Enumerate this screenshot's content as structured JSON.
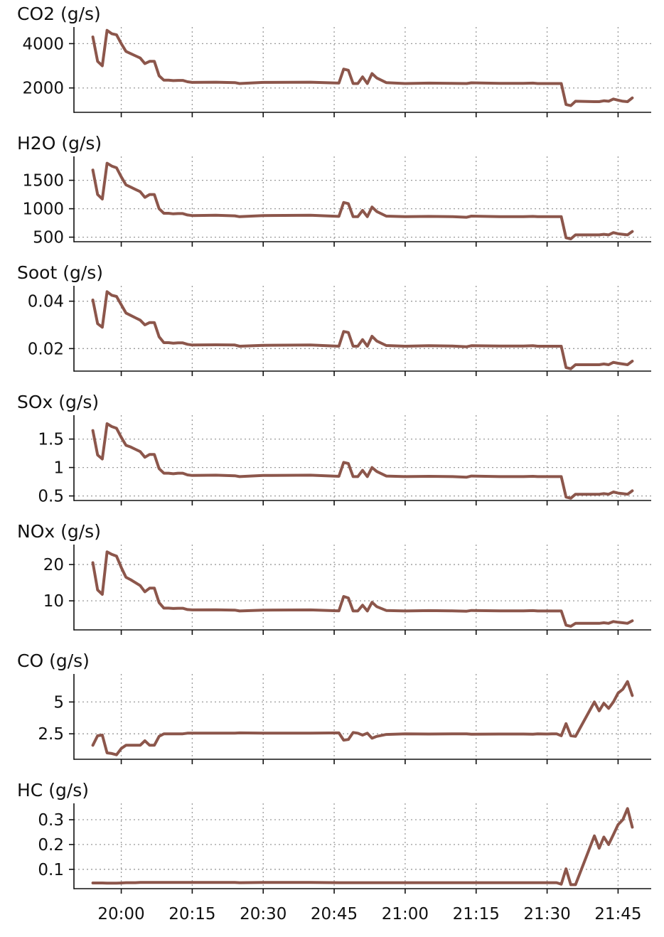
{
  "chart_data": {
    "type": "line",
    "line_color": "#8c564b",
    "grid": "dotted, on both axes",
    "x_ticks": [
      "20:00",
      "20:15",
      "20:30",
      "20:45",
      "21:00",
      "21:15",
      "21:30",
      "21:45"
    ],
    "x_range": [
      "19:50",
      "21:52"
    ],
    "x": [
      "19:54",
      "19:55",
      "19:56",
      "19:57",
      "19:58",
      "19:59",
      "20:00",
      "20:01",
      "20:02",
      "20:03",
      "20:04",
      "20:05",
      "20:06",
      "20:07",
      "20:08",
      "20:09",
      "20:10",
      "20:11",
      "20:12",
      "20:13",
      "20:14",
      "20:15",
      "20:20",
      "20:24",
      "20:25",
      "20:30",
      "20:40",
      "20:46",
      "20:47",
      "20:48",
      "20:49",
      "20:50",
      "20:51",
      "20:52",
      "20:53",
      "20:54",
      "20:56",
      "21:00",
      "21:05",
      "21:10",
      "21:13",
      "21:14",
      "21:20",
      "21:25",
      "21:27",
      "21:28",
      "21:30",
      "21:31",
      "21:32",
      "21:33",
      "21:34",
      "21:35",
      "21:36",
      "21:40",
      "21:41",
      "21:42",
      "21:43",
      "21:44",
      "21:45",
      "21:46",
      "21:47",
      "21:48"
    ],
    "panels": [
      {
        "ylabel": "CO2 (g/s)",
        "yticks": [
          2000,
          4000
        ],
        "ylim": [
          900,
          4750
        ],
        "values": [
          4300,
          3200,
          3000,
          4600,
          4450,
          4400,
          4000,
          3650,
          3550,
          3450,
          3350,
          3100,
          3200,
          3200,
          2550,
          2350,
          2350,
          2330,
          2340,
          2340,
          2280,
          2250,
          2260,
          2240,
          2200,
          2250,
          2260,
          2220,
          2850,
          2800,
          2200,
          2200,
          2500,
          2200,
          2650,
          2450,
          2240,
          2200,
          2220,
          2210,
          2200,
          2230,
          2210,
          2210,
          2220,
          2200,
          2200,
          2200,
          2200,
          2200,
          1250,
          1200,
          1400,
          1380,
          1380,
          1420,
          1400,
          1500,
          1450,
          1400,
          1380,
          1550
        ]
      },
      {
        "ylabel": "H2O (g/s)",
        "yticks": [
          500,
          1000,
          1500
        ],
        "ylim": [
          420,
          1920
        ],
        "values": [
          1680,
          1250,
          1170,
          1800,
          1750,
          1720,
          1560,
          1420,
          1380,
          1340,
          1300,
          1200,
          1250,
          1250,
          1000,
          920,
          920,
          910,
          915,
          915,
          890,
          880,
          885,
          875,
          860,
          880,
          885,
          865,
          1110,
          1090,
          860,
          860,
          970,
          860,
          1030,
          950,
          870,
          860,
          865,
          860,
          850,
          870,
          860,
          860,
          865,
          860,
          860,
          860,
          860,
          860,
          490,
          470,
          540,
          540,
          540,
          550,
          540,
          580,
          560,
          550,
          540,
          600
        ]
      },
      {
        "ylabel": "Soot (g/s)",
        "yticks": [
          0.02,
          0.04
        ],
        "ylim": [
          0.0105,
          0.0465
        ],
        "values": [
          0.0405,
          0.0305,
          0.029,
          0.044,
          0.0425,
          0.042,
          0.0385,
          0.035,
          0.034,
          0.033,
          0.032,
          0.03,
          0.031,
          0.031,
          0.025,
          0.0225,
          0.0225,
          0.0223,
          0.0224,
          0.0224,
          0.0218,
          0.0215,
          0.0216,
          0.0215,
          0.021,
          0.0214,
          0.0215,
          0.021,
          0.0272,
          0.0268,
          0.021,
          0.021,
          0.0238,
          0.021,
          0.0252,
          0.0232,
          0.0213,
          0.021,
          0.0212,
          0.0211,
          0.0208,
          0.0212,
          0.0211,
          0.0211,
          0.0212,
          0.021,
          0.021,
          0.021,
          0.021,
          0.021,
          0.012,
          0.0115,
          0.0132,
          0.0132,
          0.0132,
          0.0135,
          0.0132,
          0.0142,
          0.0138,
          0.0135,
          0.0132,
          0.0147
        ]
      },
      {
        "ylabel": "SOx (g/s)",
        "yticks": [
          0.5,
          1.0,
          1.5
        ],
        "ylim": [
          0.42,
          1.92
        ],
        "values": [
          1.65,
          1.22,
          1.15,
          1.77,
          1.72,
          1.69,
          1.53,
          1.39,
          1.36,
          1.32,
          1.28,
          1.18,
          1.23,
          1.23,
          0.98,
          0.9,
          0.9,
          0.89,
          0.9,
          0.9,
          0.87,
          0.86,
          0.865,
          0.855,
          0.84,
          0.86,
          0.865,
          0.845,
          1.09,
          1.07,
          0.84,
          0.84,
          0.95,
          0.84,
          1.0,
          0.93,
          0.85,
          0.84,
          0.845,
          0.84,
          0.83,
          0.85,
          0.84,
          0.84,
          0.845,
          0.84,
          0.84,
          0.84,
          0.84,
          0.84,
          0.48,
          0.46,
          0.53,
          0.53,
          0.53,
          0.54,
          0.53,
          0.57,
          0.55,
          0.54,
          0.53,
          0.59
        ]
      },
      {
        "ylabel": "NOx (g/s)",
        "yticks": [
          10,
          20
        ],
        "ylim": [
          2.0,
          25.5
        ],
        "values": [
          20.5,
          13.0,
          11.8,
          23.5,
          22.8,
          22.3,
          19.2,
          16.5,
          15.8,
          15.0,
          14.2,
          12.5,
          13.5,
          13.5,
          9.5,
          8.0,
          8.0,
          7.9,
          7.95,
          7.95,
          7.6,
          7.5,
          7.55,
          7.45,
          7.2,
          7.45,
          7.5,
          7.25,
          11.2,
          10.8,
          7.2,
          7.2,
          8.8,
          7.2,
          9.6,
          8.4,
          7.35,
          7.2,
          7.3,
          7.25,
          7.15,
          7.35,
          7.25,
          7.25,
          7.3,
          7.2,
          7.2,
          7.2,
          7.2,
          7.2,
          3.3,
          3.0,
          3.8,
          3.8,
          3.8,
          3.95,
          3.8,
          4.3,
          4.1,
          3.95,
          3.8,
          4.5
        ]
      },
      {
        "ylabel": "CO (g/s)",
        "yticks": [
          2.5,
          5.0
        ],
        "ylim": [
          0.5,
          7.2
        ],
        "values": [
          1.6,
          2.35,
          2.4,
          1.0,
          0.95,
          0.85,
          1.35,
          1.6,
          1.6,
          1.6,
          1.6,
          1.95,
          1.6,
          1.6,
          2.3,
          2.5,
          2.5,
          2.5,
          2.5,
          2.5,
          2.55,
          2.55,
          2.55,
          2.55,
          2.57,
          2.55,
          2.55,
          2.57,
          2.0,
          2.05,
          2.6,
          2.55,
          2.4,
          2.55,
          2.15,
          2.3,
          2.45,
          2.5,
          2.48,
          2.5,
          2.5,
          2.47,
          2.48,
          2.48,
          2.47,
          2.5,
          2.48,
          2.5,
          2.5,
          2.35,
          3.3,
          2.35,
          2.3,
          5.0,
          4.3,
          4.9,
          4.5,
          5.0,
          5.7,
          6.0,
          6.6,
          5.5
        ]
      },
      {
        "ylabel": "HC (g/s)",
        "yticks": [
          0.1,
          0.2,
          0.3
        ],
        "ylim": [
          0.022,
          0.366
        ],
        "values": [
          0.045,
          0.045,
          0.045,
          0.044,
          0.044,
          0.044,
          0.045,
          0.046,
          0.046,
          0.046,
          0.047,
          0.047,
          0.047,
          0.047,
          0.047,
          0.047,
          0.047,
          0.047,
          0.047,
          0.047,
          0.047,
          0.047,
          0.047,
          0.047,
          0.046,
          0.047,
          0.047,
          0.046,
          0.046,
          0.046,
          0.046,
          0.046,
          0.046,
          0.046,
          0.046,
          0.046,
          0.046,
          0.046,
          0.046,
          0.046,
          0.046,
          0.046,
          0.046,
          0.046,
          0.046,
          0.046,
          0.046,
          0.046,
          0.046,
          0.04,
          0.102,
          0.038,
          0.038,
          0.235,
          0.185,
          0.23,
          0.2,
          0.24,
          0.28,
          0.3,
          0.345,
          0.27
        ]
      }
    ]
  }
}
